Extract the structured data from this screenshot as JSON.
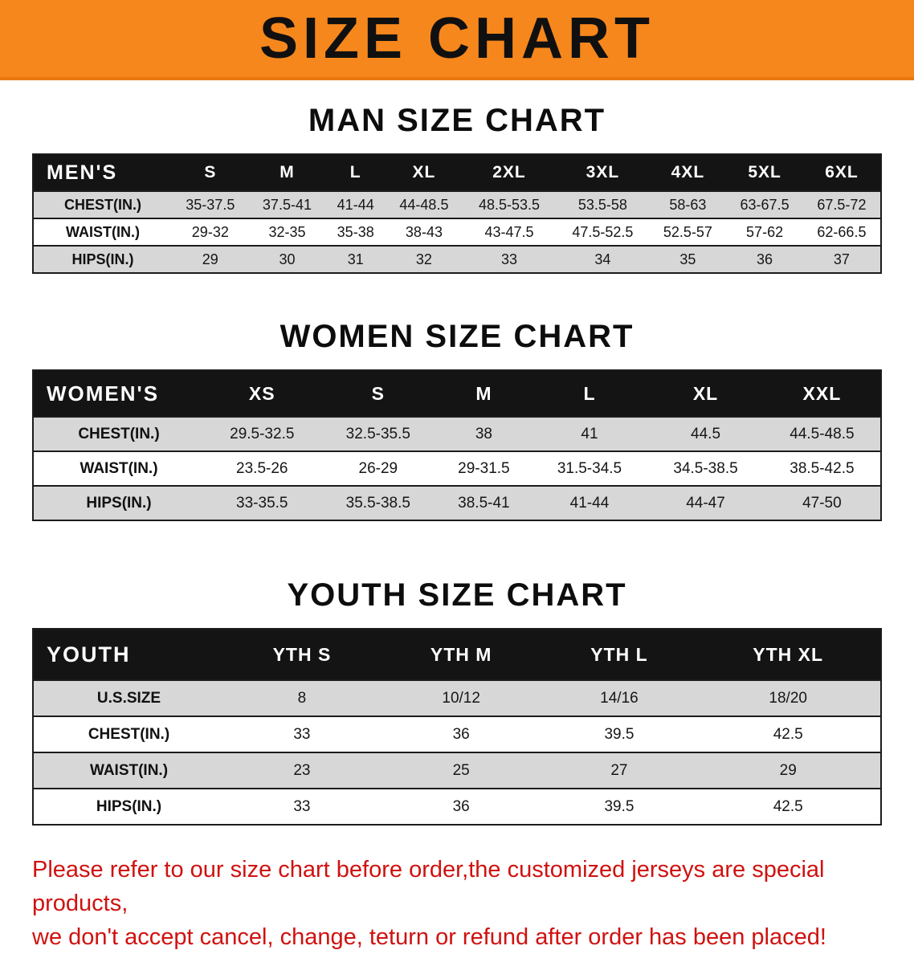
{
  "banner": {
    "title": "SIZE CHART",
    "bg_color": "#f6871d",
    "text_color": "#101010"
  },
  "colors": {
    "table_header_bg": "#141414",
    "table_header_text": "#ffffff",
    "row_stripe_gray": "#d7d7d7",
    "notice_red": "#cf1210"
  },
  "sections": [
    {
      "heading": "MAN SIZE CHART",
      "table": {
        "header": [
          "MEN'S",
          "S",
          "M",
          "L",
          "XL",
          "2XL",
          "3XL",
          "4XL",
          "5XL",
          "6XL"
        ],
        "rows": [
          {
            "label": "CHEST(IN.)",
            "values": [
              "35-37.5",
              "37.5-41",
              "41-44",
              "44-48.5",
              "48.5-53.5",
              "53.5-58",
              "58-63",
              "63-67.5",
              "67.5-72"
            ]
          },
          {
            "label": "WAIST(IN.)",
            "values": [
              "29-32",
              "32-35",
              "35-38",
              "38-43",
              "43-47.5",
              "47.5-52.5",
              "52.5-57",
              "57-62",
              "62-66.5"
            ]
          },
          {
            "label": "HIPS(IN.)",
            "values": [
              "29",
              "30",
              "31",
              "32",
              "33",
              "34",
              "35",
              "36",
              "37"
            ]
          }
        ]
      }
    },
    {
      "heading": "WOMEN SIZE CHART",
      "table": {
        "header": [
          "WOMEN'S",
          "XS",
          "S",
          "M",
          "L",
          "XL",
          "XXL"
        ],
        "rows": [
          {
            "label": "CHEST(IN.)",
            "values": [
              "29.5-32.5",
              "32.5-35.5",
              "38",
              "41",
              "44.5",
              "44.5-48.5"
            ]
          },
          {
            "label": "WAIST(IN.)",
            "values": [
              "23.5-26",
              "26-29",
              "29-31.5",
              "31.5-34.5",
              "34.5-38.5",
              "38.5-42.5"
            ]
          },
          {
            "label": "HIPS(IN.)",
            "values": [
              "33-35.5",
              "35.5-38.5",
              "38.5-41",
              "41-44",
              "44-47",
              "47-50"
            ]
          }
        ]
      }
    },
    {
      "heading": "YOUTH SIZE CHART",
      "table": {
        "header": [
          "YOUTH",
          "YTH S",
          "YTH M",
          "YTH L",
          "YTH XL"
        ],
        "rows": [
          {
            "label": "U.S.SIZE",
            "values": [
              "8",
              "10/12",
              "14/16",
              "18/20"
            ]
          },
          {
            "label": "CHEST(IN.)",
            "values": [
              "33",
              "36",
              "39.5",
              "42.5"
            ]
          },
          {
            "label": "WAIST(IN.)",
            "values": [
              "23",
              "25",
              "27",
              "29"
            ]
          },
          {
            "label": "HIPS(IN.)",
            "values": [
              "33",
              "36",
              "39.5",
              "42.5"
            ]
          }
        ]
      }
    }
  ],
  "footer": {
    "line1": "Please refer to our size chart before order,the customized jerseys are special products,",
    "line2": "we don't accept cancel, change, teturn or refund after order has been placed!"
  }
}
